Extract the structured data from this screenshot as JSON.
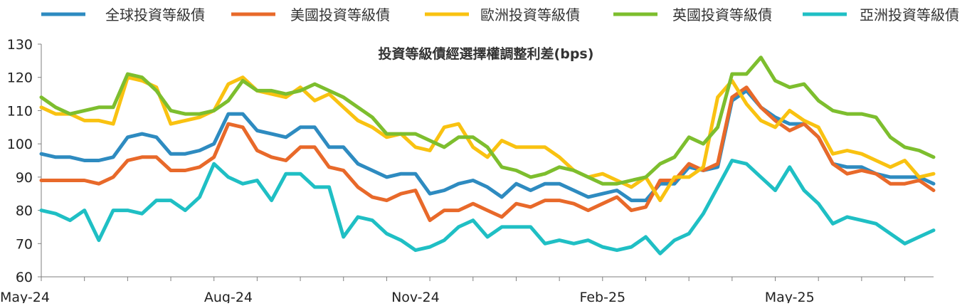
{
  "chart_data": {
    "type": "line",
    "title": "投資等級債經選擇權調整利差(bps)",
    "xlabel": "",
    "ylabel": "",
    "ylim": [
      60,
      130
    ],
    "yticks": [
      60,
      70,
      80,
      90,
      100,
      110,
      120,
      130
    ],
    "x_tick_labels": [
      "May-24",
      "Aug-24",
      "Nov-24",
      "Feb-25",
      "May-25"
    ],
    "x_tick_index": [
      0,
      13,
      26,
      39,
      52
    ],
    "grid": false,
    "legend_position": "top",
    "n_points": 63,
    "series": [
      {
        "name": "全球投資等級債",
        "color": "#2E8BC0",
        "values": [
          97,
          96,
          96,
          95,
          95,
          96,
          102,
          103,
          102,
          97,
          97,
          98,
          100,
          109,
          109,
          104,
          103,
          102,
          105,
          105,
          99,
          99,
          94,
          92,
          90,
          91,
          91,
          85,
          86,
          88,
          89,
          87,
          84,
          88,
          86,
          88,
          88,
          86,
          84,
          85,
          86,
          83,
          83,
          88,
          88,
          93,
          92,
          93,
          113,
          116,
          111,
          108,
          106,
          106,
          102,
          94,
          93,
          93,
          91,
          90,
          90,
          90,
          88
        ]
      },
      {
        "name": "美國投資等級債",
        "color": "#E8692A",
        "values": [
          89,
          89,
          89,
          89,
          88,
          90,
          95,
          96,
          96,
          92,
          92,
          93,
          96,
          106,
          105,
          98,
          96,
          95,
          99,
          99,
          93,
          92,
          87,
          84,
          83,
          85,
          86,
          77,
          80,
          80,
          82,
          80,
          78,
          82,
          81,
          83,
          83,
          82,
          80,
          82,
          84,
          80,
          81,
          89,
          89,
          94,
          92,
          94,
          114,
          117,
          111,
          107,
          104,
          106,
          102,
          94,
          91,
          92,
          91,
          88,
          88,
          89,
          86
        ]
      },
      {
        "name": "歐洲投資等級債",
        "color": "#F9C211",
        "values": [
          111,
          109,
          109,
          107,
          107,
          106,
          120,
          119,
          117,
          106,
          107,
          108,
          110,
          118,
          120,
          116,
          115,
          114,
          117,
          113,
          115,
          111,
          107,
          105,
          102,
          103,
          99,
          98,
          105,
          106,
          99,
          96,
          101,
          99,
          99,
          99,
          96,
          92,
          90,
          91,
          89,
          87,
          90,
          83,
          90,
          90,
          93,
          114,
          119,
          112,
          107,
          105,
          110,
          107,
          105,
          97,
          98,
          97,
          95,
          93,
          95,
          90,
          91
        ]
      },
      {
        "name": "英國投資等級債",
        "color": "#7DBE2E",
        "values": [
          114,
          111,
          109,
          110,
          111,
          111,
          121,
          120,
          116,
          110,
          109,
          109,
          110,
          113,
          119,
          116,
          116,
          115,
          116,
          118,
          116,
          114,
          111,
          108,
          103,
          103,
          103,
          101,
          99,
          102,
          102,
          99,
          93,
          92,
          90,
          91,
          93,
          92,
          90,
          88,
          88,
          89,
          90,
          94,
          96,
          102,
          100,
          105,
          121,
          121,
          126,
          119,
          117,
          118,
          113,
          110,
          109,
          109,
          108,
          102,
          99,
          98,
          96
        ]
      },
      {
        "name": "亞洲投資等級債",
        "color": "#1FBFC4",
        "values": [
          80,
          79,
          77,
          80,
          71,
          80,
          80,
          79,
          83,
          83,
          80,
          84,
          94,
          90,
          88,
          89,
          83,
          91,
          91,
          87,
          87,
          72,
          78,
          77,
          73,
          71,
          68,
          69,
          71,
          75,
          77,
          72,
          75,
          75,
          75,
          70,
          71,
          70,
          71,
          69,
          68,
          69,
          72,
          67,
          71,
          73,
          79,
          87,
          95,
          94,
          90,
          86,
          93,
          86,
          82,
          76,
          78,
          77,
          76,
          73,
          70,
          72,
          74
        ]
      }
    ]
  }
}
